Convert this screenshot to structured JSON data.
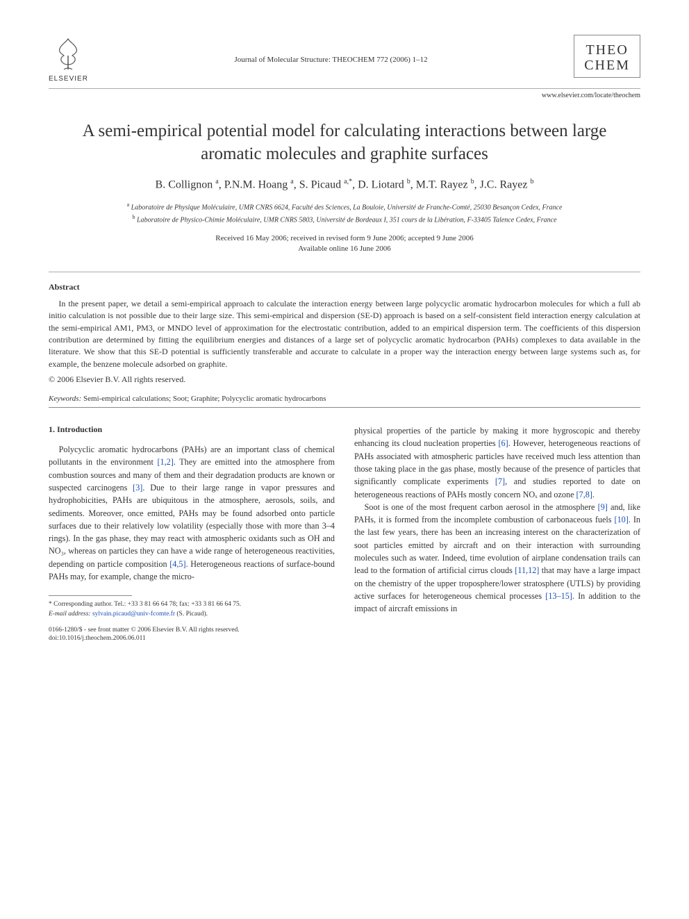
{
  "header": {
    "publisher_name": "ELSEVIER",
    "journal_ref": "Journal of Molecular Structure: THEOCHEM 772 (2006) 1–12",
    "journal_logo_line1": "THEO",
    "journal_logo_line2": "CHEM",
    "journal_url": "www.elsevier.com/locate/theochem"
  },
  "title": "A semi-empirical potential model for calculating interactions between large aromatic molecules and graphite surfaces",
  "authors_html": "B. Collignon <sup>a</sup>, P.N.M. Hoang <sup>a</sup>, S. Picaud <sup>a,*</sup>, D. Liotard <sup>b</sup>, M.T. Rayez <sup>b</sup>, J.C. Rayez <sup>b</sup>",
  "affiliations": {
    "a": "Laboratoire de Physique Moléculaire, UMR CNRS 6624, Faculté des Sciences, La Bouloie, Université de Franche-Comté, 25030 Besançon Cedex, France",
    "b": "Laboratoire de Physico-Chimie Moléculaire, UMR CNRS 5803, Université de Bordeaux I, 351 cours de la Libération, F-33405 Talence Cedex, France"
  },
  "dates": {
    "line1": "Received 16 May 2006; received in revised form 9 June 2006; accepted 9 June 2006",
    "line2": "Available online 16 June 2006"
  },
  "abstract": {
    "heading": "Abstract",
    "body": "In the present paper, we detail a semi-empirical approach to calculate the interaction energy between large polycyclic aromatic hydrocarbon molecules for which a full ab initio calculation is not possible due to their large size. This semi-empirical and dispersion (SE-D) approach is based on a self-consistent field interaction energy calculation at the semi-empirical AM1, PM3, or MNDO level of approximation for the electrostatic contribution, added to an empirical dispersion term. The coefficients of this dispersion contribution are determined by fitting the equilibrium energies and distances of a large set of polycyclic aromatic hydrocarbon (PAHs) complexes to data available in the literature. We show that this SE-D potential is sufficiently transferable and accurate to calculate in a proper way the interaction energy between large systems such as, for example, the benzene molecule adsorbed on graphite.",
    "copyright": "© 2006 Elsevier B.V. All rights reserved."
  },
  "keywords": {
    "label": "Keywords:",
    "text": "Semi-empirical calculations; Soot; Graphite; Polycyclic aromatic hydrocarbons"
  },
  "section1": {
    "heading": "1. Introduction",
    "col1_p1_pre": "Polycyclic aromatic hydrocarbons (PAHs) are an important class of chemical pollutants in the environment ",
    "ref_1_2": "[1,2]",
    "col1_p1_mid1": ". They are emitted into the atmosphere from combustion sources and many of them and their degradation products are known or suspected carcinogens ",
    "ref_3": "[3]",
    "col1_p1_mid2": ". Due to their large range in vapor pressures and hydrophobicities, PAHs are ubiquitous in the atmosphere, aerosols, soils, and sediments. Moreover, once emitted, PAHs may be found adsorbed onto particle surfaces due to their relatively low volatility (especially those with more than 3–4 rings). In the gas phase, they may react with atmospheric oxidants such as OH and NO₃, whereas on particles they can have a wide range of heterogeneous reactivities, depending on particle composition ",
    "ref_4_5": "[4,5]",
    "col1_p1_end": ". Heterogeneous reactions of surface-bound PAHs may, for example, change the micro-",
    "col2_p1_start": "physical properties of the particle by making it more hygroscopic and thereby enhancing its cloud nucleation properties ",
    "ref_6": "[6]",
    "col2_p1_mid1": ". However, heterogeneous reactions of PAHs associated with atmospheric particles have received much less attention than those taking place in the gas phase, mostly because of the presence of particles that significantly complicate experiments ",
    "ref_7": "[7]",
    "col2_p1_mid2": ", and studies reported to date on heterogeneous reactions of PAHs mostly concern NOₓ and ozone ",
    "ref_7_8": "[7,8]",
    "col2_p1_end": ".",
    "col2_p2_start": "Soot is one of the most frequent carbon aerosol in the atmosphere ",
    "ref_9": "[9]",
    "col2_p2_mid1": " and, like PAHs, it is formed from the incomplete combustion of carbonaceous fuels ",
    "ref_10": "[10]",
    "col2_p2_mid2": ". In the last few years, there has been an increasing interest on the characterization of soot particles emitted by aircraft and on their interaction with surrounding molecules such as water. Indeed, time evolution of airplane condensation trails can lead to the formation of artificial cirrus clouds ",
    "ref_11_12": "[11,12]",
    "col2_p2_mid3": " that may have a large impact on the chemistry of the upper troposphere/lower stratosphere (UTLS) by providing active surfaces for heterogeneous chemical processes ",
    "ref_13_15": "[13–15]",
    "col2_p2_end": ". In addition to the impact of aircraft emissions in"
  },
  "footnote": {
    "corr": "* Corresponding author. Tel.: +33 3 81 66 64 78; fax: +33 3 81 66 64 75.",
    "email_label": "E-mail address:",
    "email": "sylvain.picaud@univ-fcomte.fr",
    "email_suffix": "(S. Picaud)."
  },
  "footer": {
    "line1": "0166-1280/$ - see front matter © 2006 Elsevier B.V. All rights reserved.",
    "line2": "doi:10.1016/j.theochem.2006.06.011"
  },
  "colors": {
    "text": "#333333",
    "link": "#1a4fb5",
    "rule": "#888888",
    "background": "#ffffff"
  }
}
